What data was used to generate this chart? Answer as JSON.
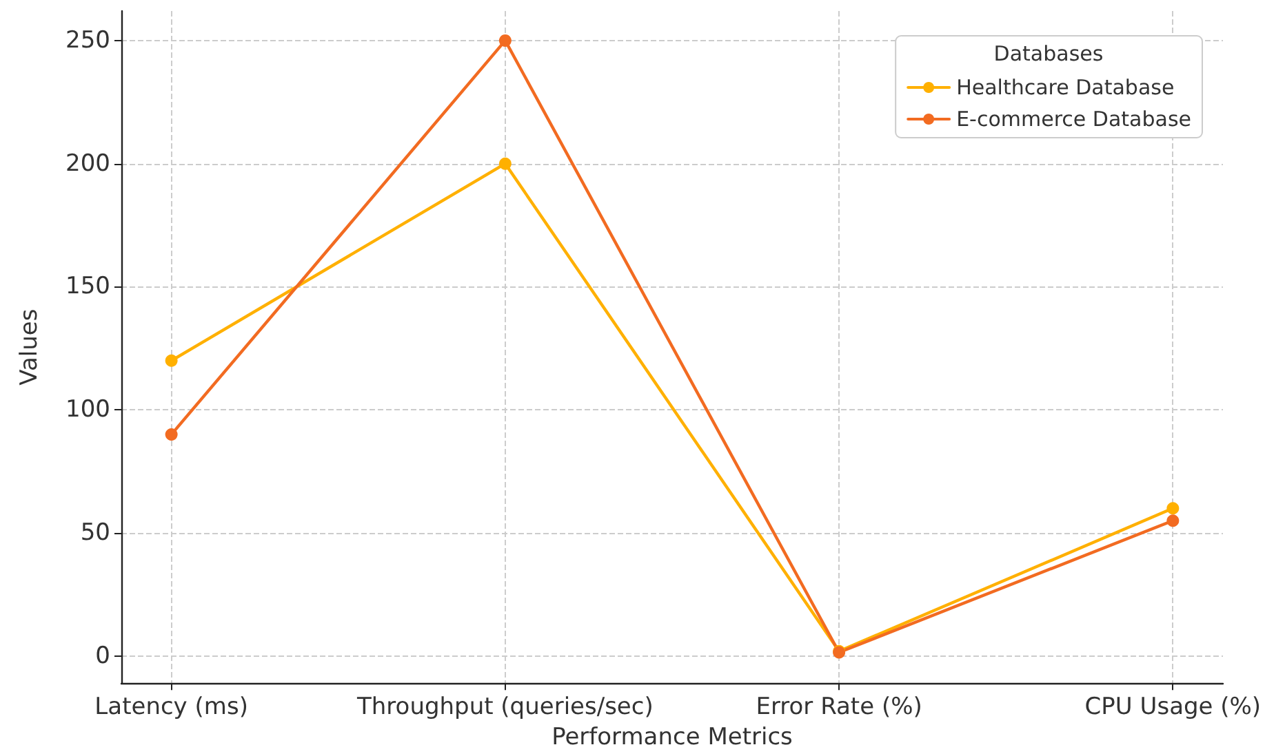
{
  "chart_data": {
    "type": "line",
    "xlabel": "Performance Metrics",
    "ylabel": "Values",
    "legend_title": "Databases",
    "categories": [
      "Latency (ms)",
      "Throughput (queries/sec)",
      "Error Rate (%)",
      "CPU Usage (%)"
    ],
    "series": [
      {
        "name": "Healthcare Database",
        "color": "#ffb000",
        "values": [
          120,
          200,
          2,
          60
        ]
      },
      {
        "name": "E-commerce Database",
        "color": "#f26b21",
        "values": [
          90,
          250,
          1.5,
          55
        ]
      }
    ],
    "ylim": [
      -11,
      262
    ],
    "yticks": [
      0,
      50,
      100,
      150,
      200,
      250
    ],
    "grid": true,
    "legend": "top right",
    "marker": "circle",
    "line_style": "solid"
  }
}
